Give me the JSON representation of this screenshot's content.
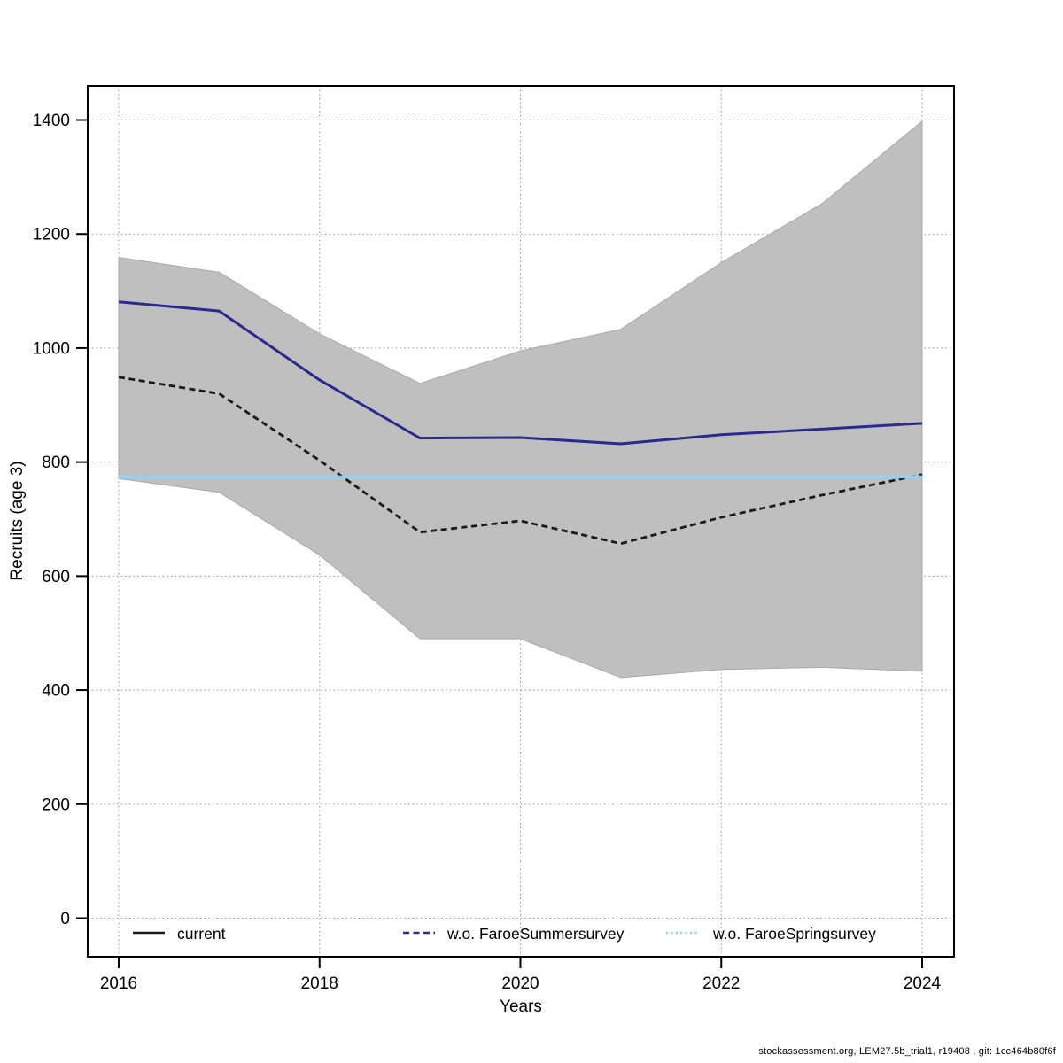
{
  "footer": {
    "text": "stockassessment.org, LEM27.5b_trial1, r19408 , git: 1cc464b80f6f"
  },
  "chart_data": {
    "type": "line",
    "title": "",
    "xlabel": "Years",
    "ylabel": "Recruits (age 3)",
    "x": [
      2016,
      2017,
      2018,
      2019,
      2020,
      2021,
      2022,
      2023,
      2024
    ],
    "xticks": [
      2016,
      2018,
      2020,
      2022,
      2024
    ],
    "yticks": [
      0,
      200,
      400,
      600,
      800,
      1000,
      1200,
      1400
    ],
    "ylim": [
      0,
      1400
    ],
    "grid": "dotted",
    "grid_color": "#8f8f8f",
    "legend_position": "bottom-inside",
    "series": [
      {
        "name": "current",
        "color": "#1a1a1a",
        "style": "dashed",
        "width": 2.8,
        "values": [
          949,
          920,
          803,
          677,
          697,
          657,
          703,
          742,
          778
        ]
      },
      {
        "name": "w.o. FaroeSummersurvey",
        "color": "#2a2a8e",
        "style": "solid",
        "width": 3,
        "values": [
          1081,
          1065,
          944,
          842,
          843,
          832,
          848,
          858,
          868
        ]
      },
      {
        "name": "w.o. FaroeSpringsurvey",
        "color": "#8ed3f0",
        "style": "solid",
        "width": 3.5,
        "values": [
          774,
          774,
          774,
          774,
          774,
          774,
          774,
          774,
          774
        ]
      }
    ],
    "band": {
      "series": "current",
      "color": "#bfbfbf",
      "edge_color": "#a9a9a9",
      "upper": [
        1159,
        1133,
        1025,
        938,
        995,
        1033,
        1150,
        1253,
        1398
      ],
      "lower": [
        771,
        747,
        637,
        490,
        490,
        422,
        436,
        440,
        433
      ]
    },
    "legend": [
      {
        "label": "current",
        "color": "#1a1a1a",
        "key_style": "solid"
      },
      {
        "label": "w.o. FaroeSummersurvey",
        "color": "#2a2a8e",
        "key_style": "dashed"
      },
      {
        "label": "w.o. FaroeSpringsurvey",
        "color": "#8ed3f0",
        "key_style": "dotted"
      }
    ]
  }
}
